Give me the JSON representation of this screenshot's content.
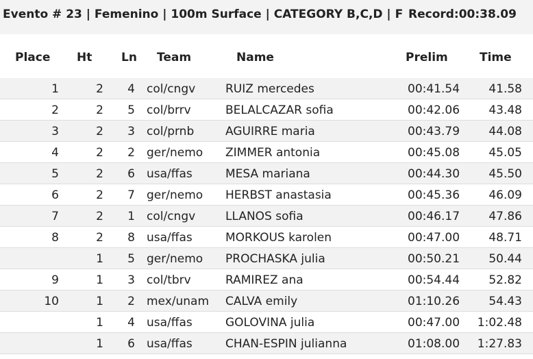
{
  "event": {
    "title": "Evento # 23 | Femenino | 100m Surface | CATEGORY B,C,D | F",
    "record": "Record:00:38.09"
  },
  "columns": {
    "place": "Place",
    "ht": "Ht",
    "ln": "Ln",
    "team": "Team",
    "name": "Name",
    "prelim": "Prelim",
    "time": "Time"
  },
  "rows": [
    {
      "place": "1",
      "ht": "2",
      "ln": "4",
      "team": "col/cngv",
      "name": "RUIZ mercedes",
      "prelim": "00:41.54",
      "time": "41.58"
    },
    {
      "place": "2",
      "ht": "2",
      "ln": "5",
      "team": "col/brrv",
      "name": "BELALCAZAR sofia",
      "prelim": "00:42.06",
      "time": "43.48"
    },
    {
      "place": "3",
      "ht": "2",
      "ln": "3",
      "team": "col/prnb",
      "name": "AGUIRRE maria",
      "prelim": "00:43.79",
      "time": "44.08"
    },
    {
      "place": "4",
      "ht": "2",
      "ln": "2",
      "team": "ger/nemo",
      "name": "ZIMMER antonia",
      "prelim": "00:45.08",
      "time": "45.05"
    },
    {
      "place": "5",
      "ht": "2",
      "ln": "6",
      "team": "usa/ffas",
      "name": "MESA mariana",
      "prelim": "00:44.30",
      "time": "45.50"
    },
    {
      "place": "6",
      "ht": "2",
      "ln": "7",
      "team": "ger/nemo",
      "name": "HERBST anastasia",
      "prelim": "00:45.36",
      "time": "46.09"
    },
    {
      "place": "7",
      "ht": "2",
      "ln": "1",
      "team": "col/cngv",
      "name": "LLANOS sofia",
      "prelim": "00:46.17",
      "time": "47.86"
    },
    {
      "place": "8",
      "ht": "2",
      "ln": "8",
      "team": "usa/ffas",
      "name": "MORKOUS karolen",
      "prelim": "00:47.00",
      "time": "48.71"
    },
    {
      "place": "",
      "ht": "1",
      "ln": "5",
      "team": "ger/nemo",
      "name": "PROCHASKA julia",
      "prelim": "00:50.21",
      "time": "50.44"
    },
    {
      "place": "9",
      "ht": "1",
      "ln": "3",
      "team": "col/tbrv",
      "name": "RAMIREZ ana",
      "prelim": "00:54.44",
      "time": "52.82"
    },
    {
      "place": "10",
      "ht": "1",
      "ln": "2",
      "team": "mex/unam",
      "name": "CALVA emily",
      "prelim": "01:10.26",
      "time": "54.43"
    },
    {
      "place": "",
      "ht": "1",
      "ln": "4",
      "team": "usa/ffas",
      "name": "GOLOVINA julia",
      "prelim": "00:47.00",
      "time": "1:02.48"
    },
    {
      "place": "",
      "ht": "1",
      "ln": "6",
      "team": "usa/ffas",
      "name": "CHAN-ESPIN julianna",
      "prelim": "01:08.00",
      "time": "1:27.83"
    }
  ]
}
